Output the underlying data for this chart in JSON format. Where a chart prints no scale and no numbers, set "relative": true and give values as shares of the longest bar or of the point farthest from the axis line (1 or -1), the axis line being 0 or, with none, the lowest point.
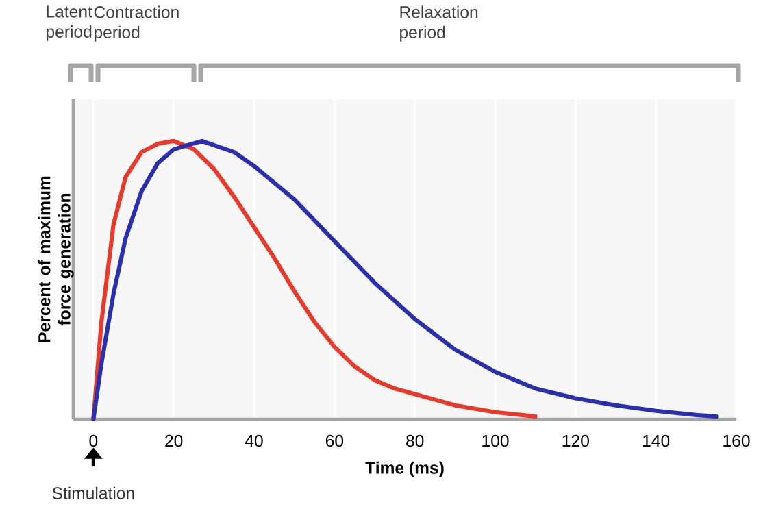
{
  "chart_data": {
    "type": "line",
    "relative": true,
    "xlabel": "Time (ms)",
    "ylabel": "Percent of maximum force generation",
    "xlim": [
      -5,
      160
    ],
    "xticks": [
      0,
      20,
      40,
      60,
      80,
      100,
      120,
      140,
      160
    ],
    "grid": "x",
    "series": [
      {
        "color": "#e8392a",
        "x": [
          0,
          2,
          5,
          8,
          12,
          16,
          20,
          25,
          30,
          35,
          40,
          45,
          50,
          55,
          60,
          65,
          70,
          75,
          80,
          90,
          100,
          110
        ],
        "values": [
          0,
          0.35,
          0.7,
          0.87,
          0.96,
          0.99,
          1.0,
          0.97,
          0.9,
          0.8,
          0.69,
          0.58,
          0.46,
          0.35,
          0.26,
          0.19,
          0.14,
          0.11,
          0.09,
          0.05,
          0.025,
          0.01
        ]
      },
      {
        "color": "#2a2fb0",
        "x": [
          0,
          2,
          5,
          8,
          12,
          16,
          20,
          27,
          35,
          40,
          50,
          60,
          70,
          80,
          90,
          100,
          110,
          120,
          130,
          140,
          150,
          155
        ],
        "values": [
          0,
          0.2,
          0.45,
          0.65,
          0.82,
          0.92,
          0.97,
          1.0,
          0.96,
          0.91,
          0.79,
          0.64,
          0.49,
          0.36,
          0.25,
          0.17,
          0.11,
          0.075,
          0.05,
          0.03,
          0.015,
          0.01
        ]
      }
    ],
    "annotations": [
      "Latent period",
      "Contraction period",
      "Relaxation period",
      "Stimulation"
    ]
  }
}
